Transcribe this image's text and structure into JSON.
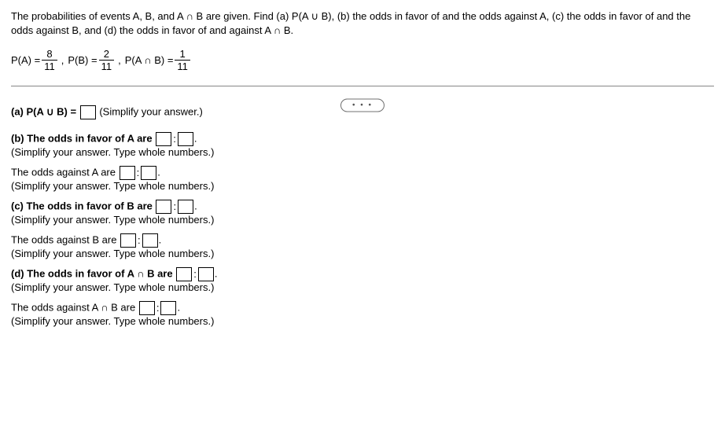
{
  "intro": "The probabilities of events A, B, and A ∩ B are given. Find (a) P(A ∪ B), (b) the odds in favor of and the odds against A, (c) the odds in favor of and the odds against B, and (d) the odds in favor of and against A ∩ B.",
  "given": {
    "pa_label": "P(A) =",
    "pa_num": "8",
    "pa_den": "11",
    "pb_label": "P(B) =",
    "pb_num": "2",
    "pb_den": "11",
    "pab_label": "P(A ∩ B) =",
    "pab_num": "1",
    "pab_den": "11",
    "comma": ","
  },
  "dots": "• • •",
  "a": {
    "label": "(a) P(A ∪ B) =",
    "hint": "(Simplify your answer.)"
  },
  "b_favor": {
    "label": "(b) The odds in favor of A are",
    "hint": "(Simplify your answer. Type whole numbers.)"
  },
  "b_against": {
    "label": "The odds against A are",
    "hint": "(Simplify your answer. Type whole numbers.)"
  },
  "c_favor": {
    "label": "(c) The odds in favor of B are",
    "hint": "(Simplify your answer. Type whole numbers.)"
  },
  "c_against": {
    "label": "The odds against B are",
    "hint": "(Simplify your answer. Type whole numbers.)"
  },
  "d_favor": {
    "label": "(d) The odds in favor of A ∩ B are",
    "hint": "(Simplify your answer. Type whole numbers.)"
  },
  "d_against": {
    "label": "The odds against A ∩ B are",
    "hint": "(Simplify your answer. Type whole numbers.)"
  },
  "colon": ":",
  "period": "."
}
